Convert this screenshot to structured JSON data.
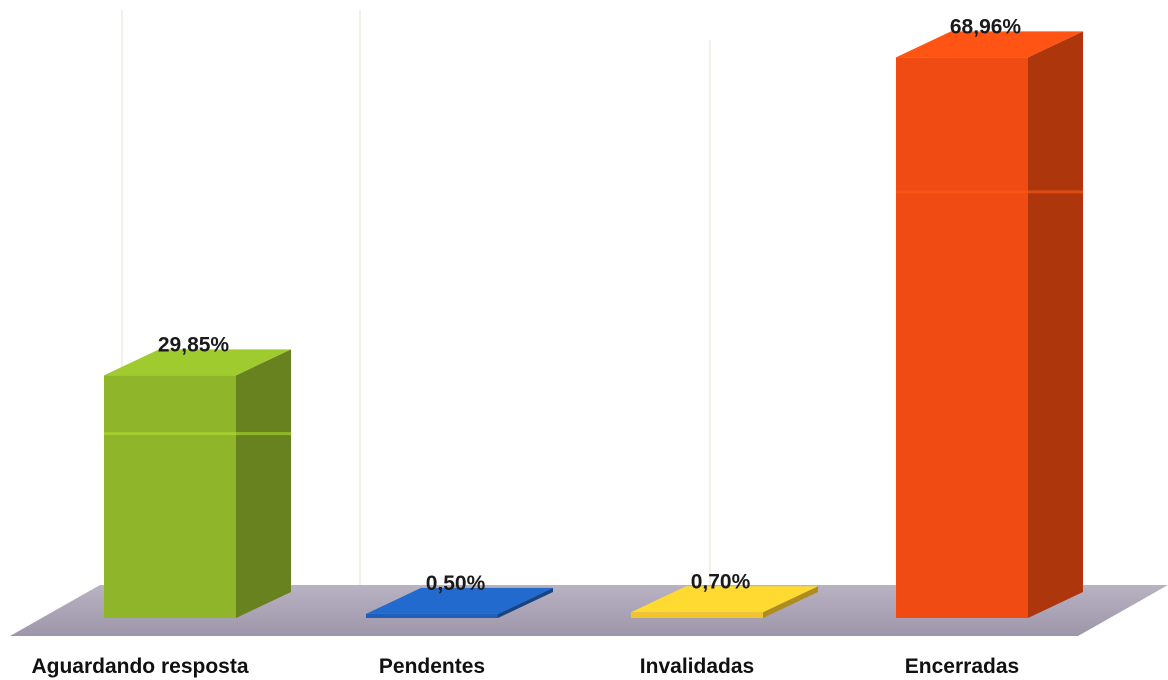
{
  "chart_data": {
    "type": "bar",
    "categories": [
      "Aguardando resposta",
      "Pendentes",
      "Invalidadas",
      "Encerradas"
    ],
    "values": [
      29.85,
      0.5,
      0.7,
      68.96
    ],
    "value_labels": [
      "29,85%",
      "0,50%",
      "0,70%",
      "68,96%"
    ],
    "colors": [
      "#8fb52a",
      "#1f5fb8",
      "#f2c32c",
      "#f04b12"
    ],
    "title": "",
    "xlabel": "",
    "ylabel": "",
    "ylim": [
      0,
      70
    ],
    "grid": false,
    "style": "3d"
  }
}
